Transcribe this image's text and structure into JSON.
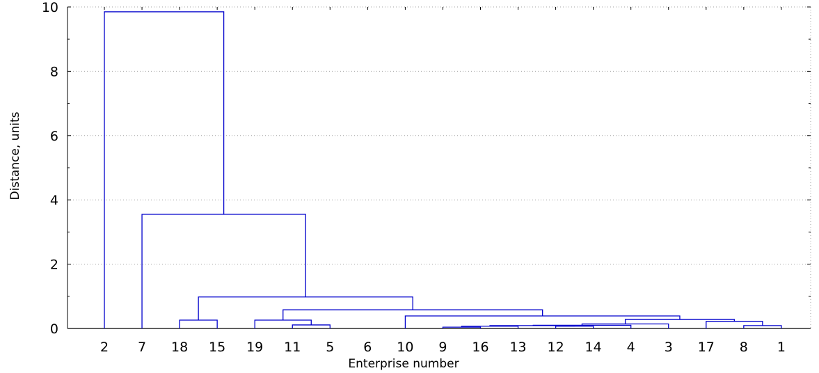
{
  "chart_data": {
    "type": "dendrogram",
    "xlabel": "Enterprise number",
    "ylabel": "Distance, units",
    "ylim": [
      0,
      10
    ],
    "yticks": [
      0,
      2,
      4,
      6,
      8,
      10
    ],
    "leaf_order": [
      "2",
      "7",
      "18",
      "15",
      "19",
      "11",
      "5",
      "6",
      "10",
      "9",
      "16",
      "13",
      "12",
      "14",
      "4",
      "3",
      "17",
      "8",
      "1"
    ],
    "links": [
      {
        "x1": 10,
        "x2": 11,
        "height": 0.04,
        "left_height": 0,
        "right_height": 0
      },
      {
        "x1": 10.5,
        "x2": 12,
        "height": 0.07,
        "left_height": 0.04,
        "right_height": 0
      },
      {
        "x1": 13,
        "x2": 14,
        "height": 0.07,
        "left_height": 0,
        "right_height": 0
      },
      {
        "x1": 11.25,
        "x2": 13.5,
        "height": 0.09,
        "left_height": 0.07,
        "right_height": 0.07
      },
      {
        "x1": 12.4,
        "x2": 15,
        "height": 0.1,
        "left_height": 0.09,
        "right_height": 0
      },
      {
        "x1": 13.7,
        "x2": 16,
        "height": 0.14,
        "left_height": 0.1,
        "right_height": 0
      },
      {
        "x1": 6,
        "x2": 7,
        "height": 0.11,
        "left_height": 0,
        "right_height": 0
      },
      {
        "x1": 18,
        "x2": 19,
        "height": 0.09,
        "left_height": 0,
        "right_height": 0
      },
      {
        "x1": 17,
        "x2": 18.5,
        "height": 0.22,
        "left_height": 0,
        "right_height": 0.09
      },
      {
        "x1": 14.85,
        "x2": 17.75,
        "height": 0.28,
        "left_height": 0.14,
        "right_height": 0.22
      },
      {
        "x1": 3,
        "x2": 4,
        "height": 0.26,
        "left_height": 0,
        "right_height": 0
      },
      {
        "x1": 5,
        "x2": 6.5,
        "height": 0.26,
        "left_height": 0,
        "right_height": 0.11
      },
      {
        "x1": 9,
        "x2": 16.3,
        "height": 0.39,
        "left_height": 0,
        "right_height": 0.28
      },
      {
        "x1": 5.75,
        "x2": 12.65,
        "height": 0.58,
        "left_height": 0.26,
        "right_height": 0.39
      },
      {
        "x1": 3.5,
        "x2": 9.2,
        "height": 0.98,
        "left_height": 0.26,
        "right_height": 0.58
      },
      {
        "x1": 2,
        "x2": 6.35,
        "height": 3.55,
        "left_height": 0,
        "right_height": 0.98
      },
      {
        "x1": 1,
        "x2": 4.175,
        "height": 9.85,
        "left_height": 0,
        "right_height": 3.55
      }
    ],
    "colors": {
      "line": "#0000cc",
      "axis": "#000000",
      "grid": "#a0a0a0"
    },
    "grid": "dotted horizontal lines at y ticks"
  }
}
